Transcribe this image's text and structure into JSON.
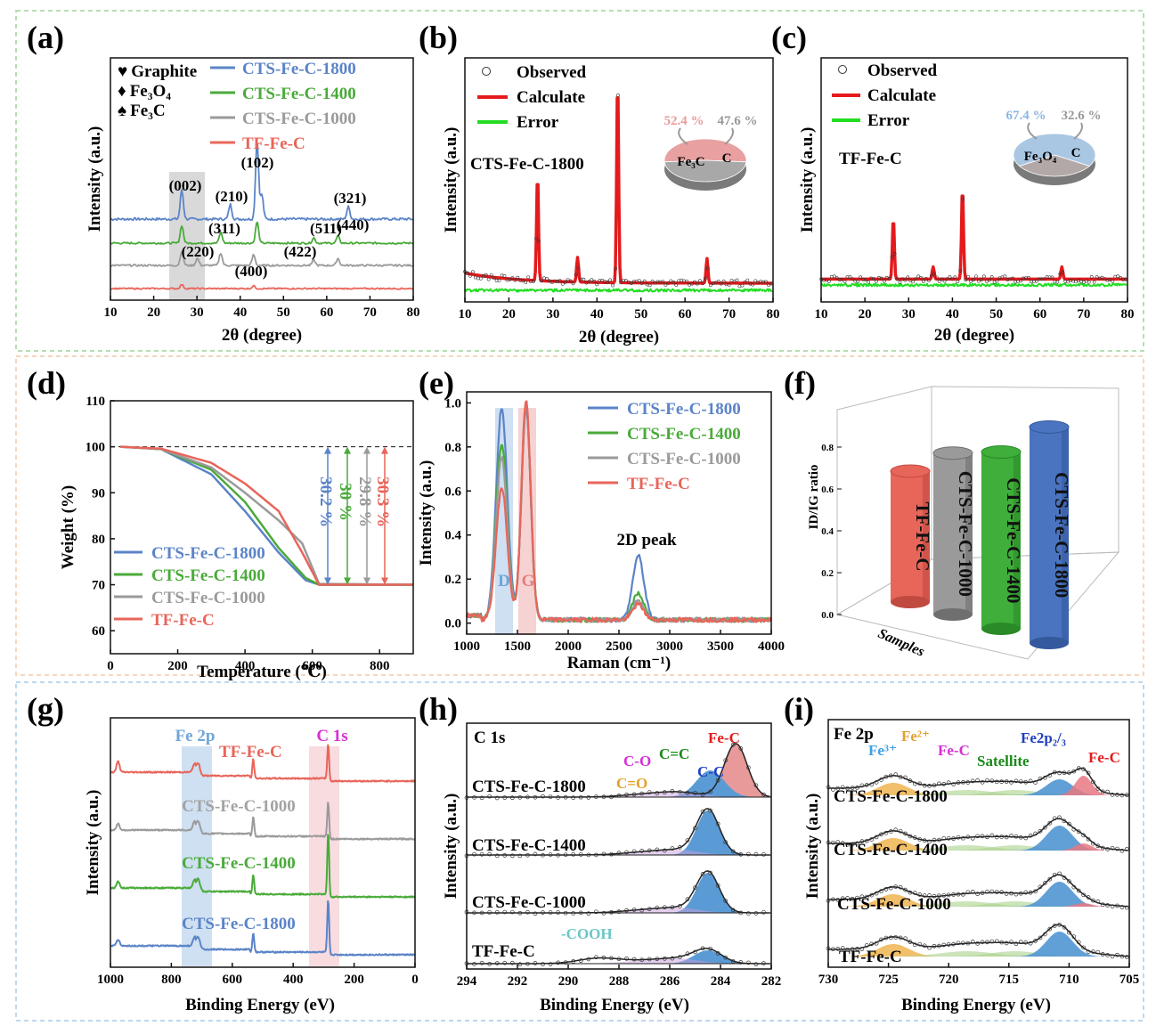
{
  "colors": {
    "blue": "#5b84c8",
    "green": "#4aaa3a",
    "gray": "#9a9a9a",
    "red": "#e8655a",
    "black": "#111111",
    "refine_red": "#e41a1c",
    "refine_green": "#22dd22"
  },
  "panel_labels": [
    "(a)",
    "(b)",
    "(c)",
    "(d)",
    "(e)",
    "(f)",
    "(g)",
    "(h)",
    "(i)"
  ],
  "chart_data": [
    {
      "id": "a",
      "type": "line",
      "title": "",
      "xlabel": "2θ (degree)",
      "ylabel": "Intensity (a.u.)",
      "xlim": [
        10,
        80
      ],
      "xticks": [
        10,
        20,
        30,
        40,
        50,
        60,
        70,
        80
      ],
      "series_names": [
        "CTS-Fe-C-1800",
        "CTS-Fe-C-1400",
        "CTS-Fe-C-1000",
        "TF-Fe-C"
      ],
      "phase_legend": [
        {
          "symbol": "♥",
          "label": "Graphite"
        },
        {
          "symbol": "♦",
          "label": "Fe₃O₄"
        },
        {
          "symbol": "♠",
          "label": "Fe₃C"
        }
      ],
      "peak_labels": [
        {
          "text": "(002)",
          "x": 26.5
        },
        {
          "text": "(102)",
          "x": 43.9
        },
        {
          "text": "(210)",
          "x": 37.7
        },
        {
          "text": "(311)",
          "x": 35.5
        },
        {
          "text": "(220)",
          "x": 30.1
        },
        {
          "text": "(400)",
          "x": 43.1
        },
        {
          "text": "(511)",
          "x": 57.0
        },
        {
          "text": "(422)",
          "x": 53.5
        },
        {
          "text": "(321)",
          "x": 65.0
        },
        {
          "text": "(440)",
          "x": 62.6
        }
      ],
      "peaks_by_series": [
        [
          [
            26.5,
            0.6
          ],
          [
            37.7,
            0.3
          ],
          [
            43.9,
            1.6
          ],
          [
            45.0,
            0.5
          ],
          [
            65.0,
            0.25
          ]
        ],
        [
          [
            26.5,
            0.5
          ],
          [
            35.5,
            0.3
          ],
          [
            43.9,
            0.6
          ],
          [
            57.0,
            0.15
          ],
          [
            62.6,
            0.2
          ]
        ],
        [
          [
            26.5,
            0.4
          ],
          [
            30.1,
            0.2
          ],
          [
            35.5,
            0.35
          ],
          [
            43.1,
            0.3
          ],
          [
            57.0,
            0.15
          ],
          [
            62.6,
            0.2
          ]
        ],
        [
          [
            26.5,
            0.15
          ],
          [
            43.1,
            0.1
          ]
        ]
      ],
      "highlight_2theta": [
        24,
        29
      ]
    },
    {
      "id": "b",
      "type": "line",
      "xlabel": "2θ (degree)",
      "ylabel": "Intensity (a.u.)",
      "xlim": [
        10,
        80
      ],
      "xticks": [
        10,
        20,
        30,
        40,
        50,
        60,
        70,
        80
      ],
      "legend": [
        "Observed",
        "Calculate",
        "Error"
      ],
      "sample_label": "CTS-Fe-C-1800",
      "peaks": [
        [
          26.5,
          0.52
        ],
        [
          35.6,
          0.12
        ],
        [
          44.7,
          1.0
        ],
        [
          65.0,
          0.12
        ]
      ],
      "pie": {
        "slices": [
          {
            "label": "Fe₃C",
            "value": 52.4,
            "pct": "52.4 %"
          },
          {
            "label": "C",
            "value": 47.6,
            "pct": "47.6 %"
          }
        ]
      }
    },
    {
      "id": "c",
      "type": "line",
      "xlabel": "2θ (degree)",
      "ylabel": "Intensity (a.u.)",
      "xlim": [
        10,
        80
      ],
      "xticks": [
        10,
        20,
        30,
        40,
        50,
        60,
        70,
        80
      ],
      "legend": [
        "Observed",
        "Calculate",
        "Error"
      ],
      "sample_label": "TF-Fe-C",
      "peaks": [
        [
          26.5,
          0.3
        ],
        [
          35.6,
          0.06
        ],
        [
          42.3,
          0.45
        ],
        [
          65.0,
          0.06
        ]
      ],
      "pie": {
        "slices": [
          {
            "label": "Fe₃O₄",
            "value": 67.4,
            "pct": "67.4 %"
          },
          {
            "label": "C",
            "value": 32.6,
            "pct": "32.6 %"
          }
        ]
      }
    },
    {
      "id": "d",
      "type": "line",
      "xlabel": "Temperature (℃)",
      "ylabel": "Weight (%)",
      "xlim": [
        0,
        900
      ],
      "ylim": [
        55,
        110
      ],
      "xticks": [
        0,
        200,
        400,
        600,
        800
      ],
      "yticks": [
        60,
        70,
        80,
        90,
        100,
        110
      ],
      "series_names": [
        "CTS-Fe-C-1800",
        "CTS-Fe-C-1400",
        "CTS-Fe-C-1000",
        "TF-Fe-C"
      ],
      "weight_loss": [
        "30.2 %",
        "30 %",
        "29.8 %",
        "30.3 %"
      ],
      "curves": [
        [
          [
            30,
            100
          ],
          [
            150,
            99.5
          ],
          [
            300,
            94
          ],
          [
            400,
            86
          ],
          [
            500,
            77
          ],
          [
            580,
            71
          ],
          [
            620,
            70
          ],
          [
            900,
            70
          ]
        ],
        [
          [
            30,
            100
          ],
          [
            150,
            99.5
          ],
          [
            300,
            95
          ],
          [
            400,
            88
          ],
          [
            500,
            78
          ],
          [
            580,
            71.5
          ],
          [
            620,
            70
          ],
          [
            900,
            70
          ]
        ],
        [
          [
            30,
            100
          ],
          [
            150,
            99.5
          ],
          [
            300,
            95.5
          ],
          [
            400,
            90
          ],
          [
            500,
            84
          ],
          [
            570,
            79
          ],
          [
            620,
            70.2
          ],
          [
            900,
            70
          ]
        ],
        [
          [
            30,
            100
          ],
          [
            150,
            99.6
          ],
          [
            300,
            96.5
          ],
          [
            400,
            92
          ],
          [
            500,
            86
          ],
          [
            570,
            77
          ],
          [
            620,
            70
          ],
          [
            900,
            70
          ]
        ]
      ]
    },
    {
      "id": "e",
      "type": "line",
      "xlabel": "Raman (cm⁻¹)",
      "ylabel": "Intensity (a.u.)",
      "xlim": [
        1000,
        4000
      ],
      "ylim": [
        -0.05,
        1.05
      ],
      "xticks": [
        1000,
        1500,
        2000,
        2500,
        3000,
        3500,
        4000
      ],
      "yticks": [
        0.0,
        0.2,
        0.4,
        0.6,
        0.8,
        1.0
      ],
      "series_names": [
        "CTS-Fe-C-1800",
        "CTS-Fe-C-1400",
        "CTS-Fe-C-1000",
        "TF-Fe-C"
      ],
      "band_labels": [
        "D",
        "G",
        "2D peak"
      ],
      "params": [
        {
          "d": 0.96,
          "g": 0.96,
          "twod": 0.29
        },
        {
          "d": 0.8,
          "g": 0.98,
          "twod": 0.12
        },
        {
          "d": 0.74,
          "g": 0.97,
          "twod": 0.09
        },
        {
          "d": 0.6,
          "g": 1.0,
          "twod": 0.07
        }
      ]
    },
    {
      "id": "f",
      "type": "bar",
      "ylabel": "ID/IG ratio",
      "xlabel": "Samples",
      "yticks": [
        "0.0",
        "0.2",
        "0.4",
        "0.6",
        "0.8"
      ],
      "categories": [
        "TF-Fe-C",
        "CTS-Fe-C-1000",
        "CTS-Fe-C-1400",
        "CTS-Fe-C-1800"
      ],
      "values": [
        0.6,
        0.74,
        0.81,
        0.99
      ]
    },
    {
      "id": "g",
      "type": "line",
      "xlabel": "Binding Energy (eV)",
      "ylabel": "Intensity (a.u.)",
      "xlim": [
        1000,
        0
      ],
      "xticks": [
        1000,
        800,
        600,
        400,
        200,
        0
      ],
      "series_names": [
        "TF-Fe-C",
        "CTS-Fe-C-1000",
        "CTS-Fe-C-1400",
        "CTS-Fe-C-1800"
      ],
      "region_labels": [
        "Fe 2p",
        "C 1s"
      ]
    },
    {
      "id": "h",
      "type": "line",
      "title": "C 1s",
      "xlabel": "Binding Energy (eV)",
      "ylabel": "Intensity (a.u.)",
      "xlim": [
        294,
        282
      ],
      "xticks": [
        294,
        292,
        290,
        288,
        286,
        284,
        282
      ],
      "series_names": [
        "CTS-Fe-C-1800",
        "CTS-Fe-C-1400",
        "CTS-Fe-C-1000",
        "TF-Fe-C"
      ],
      "component_labels": [
        "Fe-C",
        "C=C",
        "C-O",
        "C-C",
        "C=O",
        "-COOH"
      ]
    },
    {
      "id": "i",
      "type": "line",
      "title": "Fe 2p",
      "xlabel": "Binding Energy (eV)",
      "ylabel": "Intensity (a.u.)",
      "xlim": [
        730,
        705
      ],
      "xticks": [
        730,
        725,
        720,
        715,
        710,
        705
      ],
      "series_names": [
        "CTS-Fe-C-1800",
        "CTS-Fe-C-1400",
        "CTS-Fe-C-1000",
        "TF-Fe-C"
      ],
      "component_labels": [
        "Fe³⁺",
        "Fe²⁺",
        "Fe-C",
        "Satellite",
        "Fe2p₂/₃",
        "Fe-C"
      ]
    }
  ]
}
